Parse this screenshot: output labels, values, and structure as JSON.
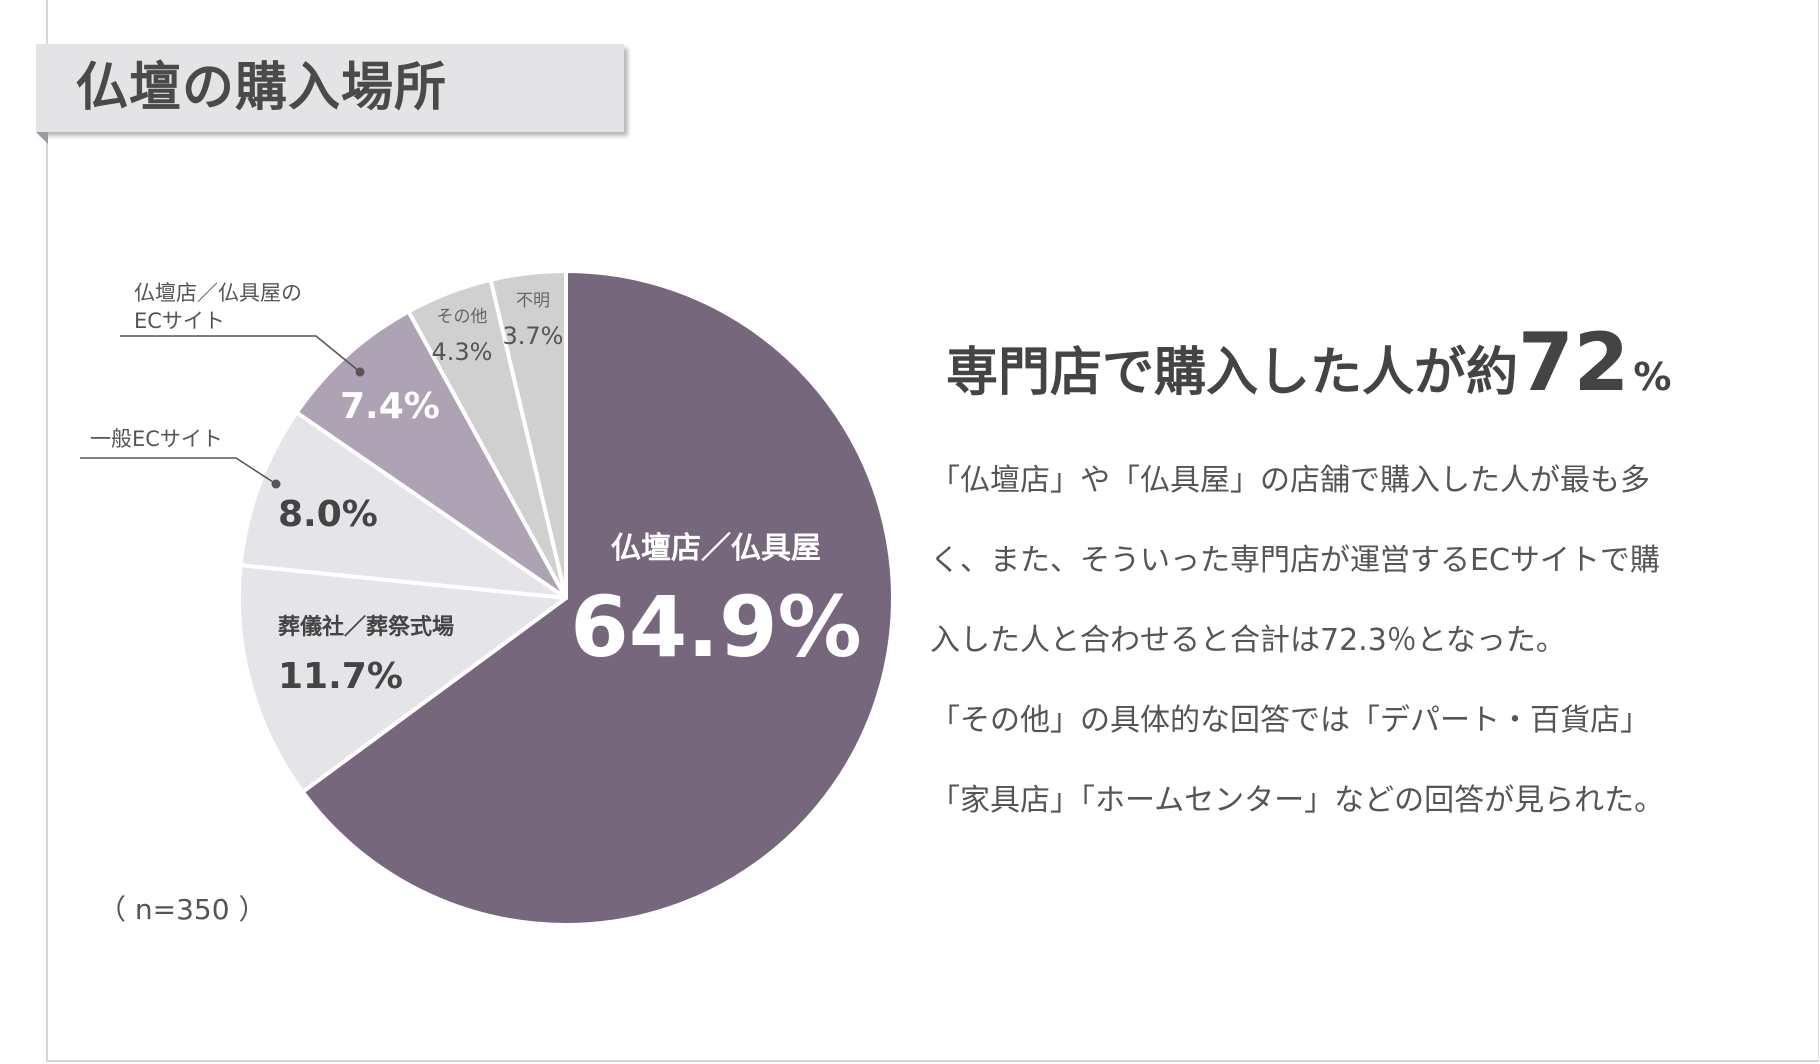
{
  "title": "仏壇の購入場所",
  "note": "（ n=350 ）",
  "headline": {
    "text": "専門店で購入した人が約",
    "number": "72",
    "unit": "%"
  },
  "body_lines": [
    "「仏壇店」や「仏具屋」の店舗で購入した人が最も多",
    "く、また、そういった専門店が運営するECサイトで購",
    "入した人と合わせると合計は72.3％となった。",
    "「その他」の具体的な回答では「デパート・百貨店」",
    "「家具店」「ホームセンター」などの回答が見られた。"
  ],
  "chart_data": {
    "type": "pie",
    "categories": [
      "仏壇店／仏具屋",
      "葬儀社／葬祭式場",
      "一般ECサイト",
      "仏壇店／仏具屋のECサイト",
      "その他",
      "不明"
    ],
    "values": [
      64.9,
      11.7,
      8.0,
      7.4,
      4.3,
      3.7
    ],
    "value_labels": [
      "64.9%",
      "11.7%",
      "8.0%",
      "7.4%",
      "4.3%",
      "3.7%"
    ],
    "label_lines": [
      [
        "仏壇店／仏具屋"
      ],
      [
        "葬儀社／葬祭式場"
      ],
      [
        "一般ECサイト"
      ],
      [
        "仏壇店／仏具屋の",
        "ECサイト"
      ],
      [
        "その他"
      ],
      [
        "不明"
      ]
    ],
    "colors": [
      "#76677d",
      "#e5e4e8",
      "#e5e4e8",
      "#aea3b5",
      "#d0d0d0",
      "#d0d0d0"
    ],
    "value_label_colors": [
      "#ffffff",
      "#444444",
      "#444444",
      "#ffffff",
      "#555555",
      "#555555"
    ],
    "category_label_colors": [
      "#ffffff",
      "#444444",
      "#555555",
      "#555555",
      "#666666",
      "#666666"
    ],
    "start_angle_deg": 0,
    "direction": "clockwise",
    "callouts": [
      false,
      false,
      true,
      true,
      false,
      false
    ],
    "n": 350
  }
}
